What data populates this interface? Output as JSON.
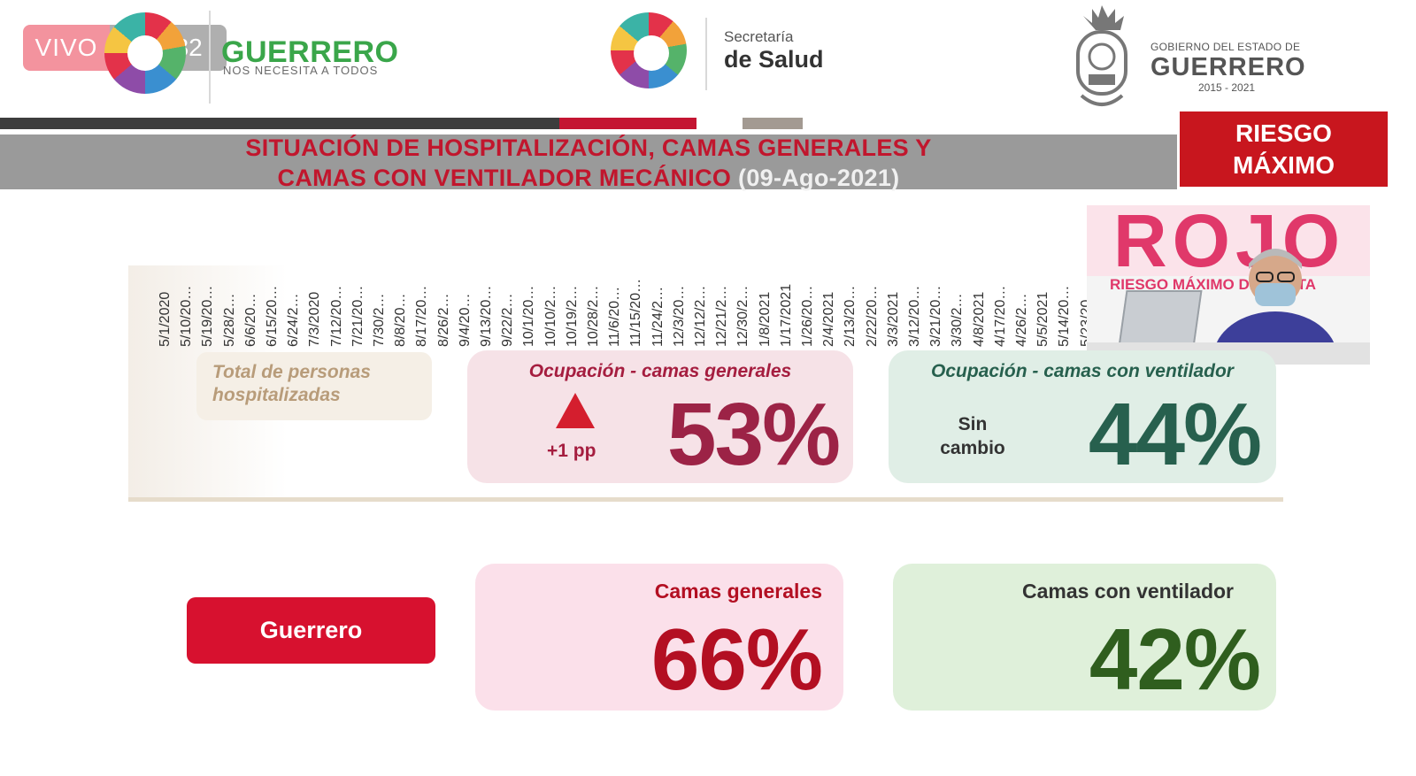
{
  "live": {
    "label": "VIVO",
    "viewers": "632"
  },
  "header": {
    "state_brand": "GUERRERO",
    "state_tagline": "NOS NECESITA A TODOS",
    "secretaria_line1": "Secretaría",
    "secretaria_line2": "de Salud",
    "gobierno_small": "GOBIERNO DEL ESTADO DE",
    "gobierno_big": "GUERRERO",
    "gobierno_years": "2015 - 2021"
  },
  "title": {
    "line1": "SITUACIÓN DE HOSPITALIZACIÓN, CAMAS GENERALES Y",
    "line2": "CAMAS CON VENTILADOR MECÁNICO",
    "date": "(09-Ago-2021)"
  },
  "risk_badge": {
    "line1": "RIESGO",
    "line2": "MÁXIMO"
  },
  "video": {
    "big_word": "ROJO",
    "caption": "RIESGO MÁXIMO DE CONTA"
  },
  "chart_data": {
    "type": "line",
    "x": [
      "5/1/2020",
      "5/10/20…",
      "5/19/20…",
      "5/28/2…",
      "6/6/20…",
      "6/15/20…",
      "6/24/2…",
      "7/3/2020",
      "7/12/20…",
      "7/21/20…",
      "7/30/2…",
      "8/8/20…",
      "8/17/20…",
      "8/26/2…",
      "9/4/20…",
      "9/13/20…",
      "9/22/2…",
      "10/1/20…",
      "10/10/2…",
      "10/19/2…",
      "10/28/2…",
      "11/6/20…",
      "11/15/20…",
      "11/24/2…",
      "12/3/20…",
      "12/12/2…",
      "12/21/2…",
      "12/30/2…",
      "1/8/2021",
      "1/17/2021",
      "1/26/20…",
      "2/4/2021",
      "2/13/20…",
      "2/22/20…",
      "3/3/2021",
      "3/12/20…",
      "3/21/20…",
      "3/30/2…",
      "4/8/2021",
      "4/17/20…",
      "4/26/2…",
      "5/5/2021",
      "5/14/20…",
      "5/23/20…"
    ],
    "ylabel": "",
    "title": ""
  },
  "overlay": {
    "total_label": "Total de personas hospitalizadas",
    "general": {
      "header": "Ocupación - camas generales",
      "change": "+1 pp",
      "value": "53%"
    },
    "ventilator": {
      "header": "Ocupación - camas con ventilador",
      "change": "Sin cambio",
      "value": "44%"
    }
  },
  "state_row": {
    "state_button": "Guerrero",
    "general": {
      "header": "Camas generales",
      "value": "66%"
    },
    "ventilator": {
      "header": "Camas con ventilador",
      "value": "42%"
    }
  },
  "colors": {
    "title_red": "#c1162d",
    "risk_red": "#c8161e",
    "state_button": "#d7112f",
    "general_value": "#b30f22",
    "ventilator_value": "#2f5e1e"
  }
}
